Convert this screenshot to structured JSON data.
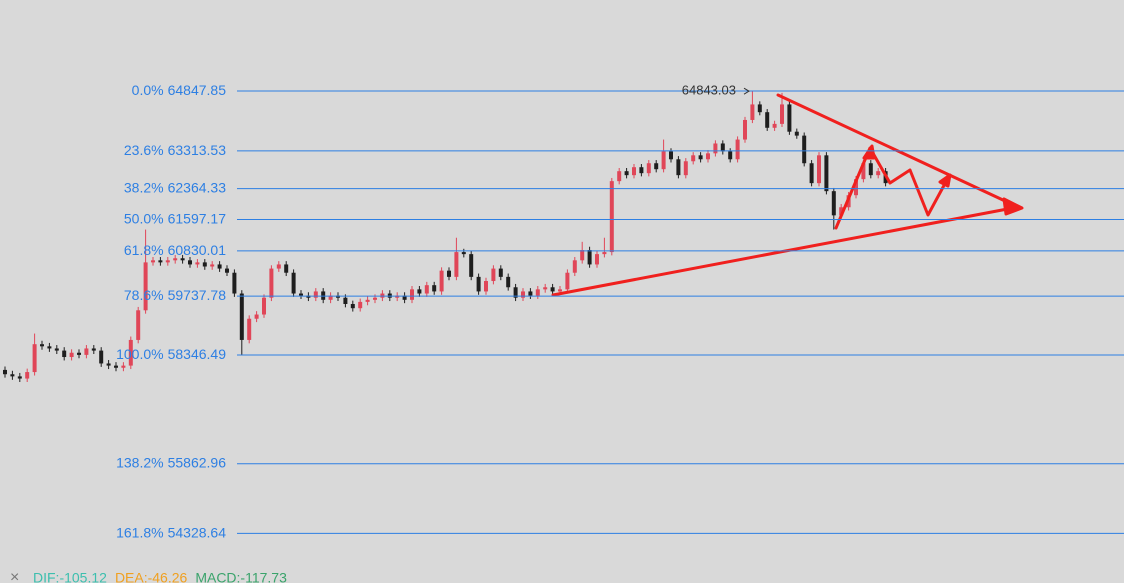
{
  "chart_data": {
    "type": "candlestick",
    "log_scale": true,
    "ylim": [
      53645,
      67252
    ],
    "up_color": "#e04658",
    "down_color": "#1e1e1e",
    "level_color": "#2d7fe3",
    "levels": [
      {
        "label": "0.0%",
        "value": 64847.85
      },
      {
        "label": "23.6%",
        "value": 63313.53
      },
      {
        "label": "38.2%",
        "value": 62364.33
      },
      {
        "label": "50.0%",
        "value": 61597.17
      },
      {
        "label": "61.8%",
        "value": 60830.01
      },
      {
        "label": "78.6%",
        "value": 59737.78
      },
      {
        "label": "100.0%",
        "value": 58346.49
      },
      {
        "label": "138.2%",
        "value": 55862.96
      },
      {
        "label": "161.8%",
        "value": 54328.64
      }
    ],
    "max_marker": 64843.03,
    "indicators": [
      {
        "text": "DIF:-105.12",
        "color": "#3cbfae"
      },
      {
        "text": "DEA:-46.26",
        "color": "#f0a020"
      },
      {
        "text": "MACD:-117.73",
        "color": "#3aa36b"
      }
    ],
    "open": [
      58000,
      57900,
      57850,
      57800,
      57950,
      58600,
      58550,
      58500,
      58450,
      58300,
      58400,
      58350,
      58500,
      58450,
      58150,
      58100,
      58050,
      58100,
      58700,
      59400,
      60550,
      60600,
      60550,
      60600,
      60650,
      60600,
      60500,
      60550,
      60450,
      60500,
      60400,
      60300,
      59800,
      58700,
      59200,
      59300,
      59700,
      60400,
      60500,
      60300,
      59800,
      59750,
      59700,
      59850,
      59650,
      59750,
      59700,
      59550,
      59450,
      59600,
      59650,
      59700,
      59800,
      59700,
      59750,
      59650,
      59900,
      59800,
      60000,
      59850,
      60350,
      60200,
      60800,
      60750,
      60200,
      59850,
      60100,
      60400,
      60200,
      59950,
      59700,
      59850,
      59750,
      59900,
      59950,
      59850,
      59900,
      60300,
      60600,
      60850,
      60500,
      60750,
      60800,
      62550,
      62800,
      62700,
      62900,
      62750,
      63000,
      62850,
      63300,
      63100,
      62700,
      63050,
      63200,
      63100,
      63250,
      63500,
      63300,
      63100,
      63600,
      64100,
      64500,
      64300,
      63900,
      64000,
      64500,
      63800,
      63700,
      63000,
      62500,
      63200,
      62300,
      61700,
      61900,
      62200,
      62600,
      63000,
      62700,
      62800
    ],
    "high": [
      58080,
      57980,
      57930,
      58030,
      58850,
      58680,
      58630,
      58580,
      58530,
      58480,
      58480,
      58580,
      58580,
      58530,
      58230,
      58180,
      58180,
      58780,
      59480,
      61350,
      60680,
      60680,
      60680,
      60730,
      60730,
      60680,
      60630,
      60630,
      60580,
      60580,
      60480,
      60380,
      59880,
      59280,
      59380,
      59780,
      60480,
      60580,
      60580,
      60380,
      59880,
      59830,
      59930,
      59930,
      59830,
      59830,
      59780,
      59630,
      59680,
      59730,
      59780,
      59880,
      59880,
      59830,
      59830,
      59980,
      59980,
      60080,
      60080,
      60430,
      60430,
      61150,
      60880,
      60830,
      60280,
      60180,
      60480,
      60480,
      60280,
      60030,
      59930,
      59930,
      59980,
      60030,
      60030,
      59980,
      60380,
      60680,
      61050,
      60930,
      60830,
      61150,
      62630,
      62880,
      62880,
      62980,
      62980,
      63080,
      63080,
      63600,
      63380,
      63180,
      63130,
      63280,
      63280,
      63330,
      63580,
      63580,
      63380,
      63680,
      64180,
      64843,
      64580,
      64380,
      64080,
      64800,
      64580,
      63880,
      63780,
      63080,
      63280,
      63280,
      62380,
      61980,
      62280,
      62680,
      63080,
      63080,
      62880,
      62880
    ],
    "low": [
      57820,
      57770,
      57720,
      57720,
      57870,
      58470,
      58420,
      58370,
      58220,
      58220,
      58270,
      58270,
      58370,
      58070,
      58020,
      57970,
      57970,
      58020,
      58620,
      59320,
      60470,
      60470,
      60470,
      60520,
      60520,
      60420,
      60420,
      60370,
      60370,
      60320,
      60220,
      59720,
      58350,
      58620,
      59120,
      59220,
      59620,
      60320,
      60220,
      59720,
      59670,
      59620,
      59620,
      59570,
      59570,
      59620,
      59470,
      59370,
      59370,
      59520,
      59570,
      59620,
      59620,
      59620,
      59570,
      59570,
      59720,
      59720,
      59770,
      59770,
      60120,
      60120,
      60670,
      60120,
      59770,
      59770,
      60020,
      60120,
      59870,
      59620,
      59620,
      59670,
      59670,
      59820,
      59770,
      59770,
      59820,
      60220,
      60520,
      60420,
      60420,
      60670,
      60720,
      62470,
      62620,
      62620,
      62670,
      62670,
      62770,
      62770,
      63020,
      62620,
      62620,
      62970,
      63020,
      63020,
      63170,
      63220,
      63020,
      63020,
      63520,
      64020,
      64220,
      63820,
      63820,
      63920,
      63720,
      63620,
      62920,
      62420,
      62420,
      62220,
      61350,
      61620,
      61820,
      62120,
      62520,
      62620,
      62620,
      62420
    ],
    "close": [
      57900,
      57850,
      57800,
      57950,
      58600,
      58550,
      58500,
      58450,
      58300,
      58400,
      58350,
      58500,
      58450,
      58150,
      58100,
      58050,
      58100,
      58700,
      59400,
      60550,
      60600,
      60550,
      60600,
      60650,
      60600,
      60500,
      60550,
      60450,
      60500,
      60400,
      60300,
      59800,
      58700,
      59200,
      59300,
      59700,
      60400,
      60500,
      60300,
      59800,
      59750,
      59700,
      59850,
      59650,
      59750,
      59700,
      59550,
      59450,
      59600,
      59650,
      59700,
      59800,
      59700,
      59750,
      59650,
      59900,
      59800,
      60000,
      59850,
      60350,
      60200,
      60800,
      60750,
      60200,
      59850,
      60100,
      60400,
      60200,
      59950,
      59700,
      59850,
      59750,
      59900,
      59950,
      59850,
      59900,
      60300,
      60600,
      60850,
      60500,
      60750,
      60800,
      62550,
      62800,
      62700,
      62900,
      62750,
      63000,
      62850,
      63300,
      63100,
      62700,
      63050,
      63200,
      63100,
      63250,
      63500,
      63300,
      63100,
      63600,
      64100,
      64500,
      64300,
      63900,
      64000,
      64500,
      63800,
      63700,
      63000,
      62500,
      63200,
      62300,
      61700,
      61900,
      62200,
      62600,
      63000,
      62700,
      62800,
      62500
    ]
  }
}
